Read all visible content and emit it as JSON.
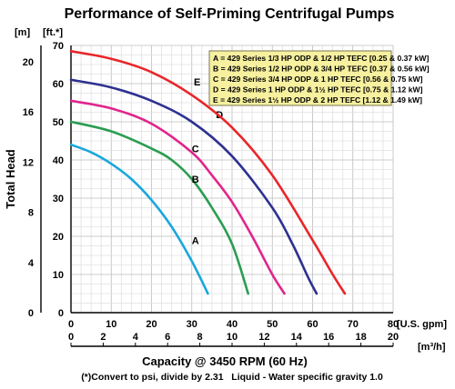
{
  "chart_data": {
    "type": "line",
    "title": "Performance of Self-Priming Centrifugal Pumps",
    "xlabel": "Capacity @ 3450 RPM (60 Hz)",
    "ylabel": "Total Head",
    "footnote": "(*)Convert to psi, divide by 2.31   Liquid - Water specific gravity 1.0",
    "x_axis": {
      "unit": "[U.S. gpm]",
      "range": [
        0,
        80
      ],
      "ticks": [
        "0",
        "10",
        "20",
        "30",
        "40",
        "50",
        "60",
        "70",
        "80"
      ]
    },
    "x2_axis": {
      "unit": "[m³/h]",
      "range": [
        0,
        20
      ],
      "ticks": [
        "0",
        "2",
        "4",
        "6",
        "8",
        "10",
        "12",
        "14",
        "16",
        "18",
        "20"
      ]
    },
    "y_axis": {
      "unit": "[ft.*]",
      "range": [
        0,
        70
      ],
      "ticks": [
        "0",
        "10",
        "20",
        "30",
        "40",
        "50",
        "60",
        "70"
      ]
    },
    "y2_axis": {
      "unit": "[m]",
      "range": [
        0,
        21.3
      ],
      "ticks": [
        "0",
        "4",
        "8",
        "12",
        "16",
        "20"
      ]
    },
    "grid": true,
    "legend": {
      "position": "top-right",
      "entries": [
        "A = 429 Series 1/3 HP ODP & 1/2 HP TEFC [0.25 & 0.37 kW]",
        "B = 429 Series 1/2 HP ODP & 3/4 HP TEFC [0.37 & 0.56 kW]",
        "C = 429 Series 3/4 HP ODP & 1 HP TEFC [0.56 & 0.75 kW]",
        "D = 429 Series 1 HP ODP & 1½ HP TEFC [0.75 & 1.12 kW]",
        "E = 429 Series 1½ HP ODP & 2 HP TEFC [1.12 & 1.49 kW]"
      ]
    },
    "series": [
      {
        "name": "A",
        "color": "#1aa7dc",
        "label_at": [
          30,
          18
        ],
        "points": [
          [
            0,
            44
          ],
          [
            5,
            42
          ],
          [
            10,
            39
          ],
          [
            15,
            35
          ],
          [
            20,
            29.5
          ],
          [
            25,
            22.5
          ],
          [
            30,
            13.5
          ],
          [
            34,
            5
          ]
        ]
      },
      {
        "name": "B",
        "color": "#2a9d52",
        "label_at": [
          30,
          34
        ],
        "points": [
          [
            0,
            50
          ],
          [
            10,
            47.5
          ],
          [
            20,
            43
          ],
          [
            25,
            40
          ],
          [
            30,
            35
          ],
          [
            35,
            27.5
          ],
          [
            40,
            18
          ],
          [
            44,
            5
          ]
        ]
      },
      {
        "name": "C",
        "color": "#e0258c",
        "label_at": [
          30,
          42
        ],
        "points": [
          [
            0,
            55.5
          ],
          [
            10,
            53.5
          ],
          [
            20,
            49.5
          ],
          [
            30,
            42
          ],
          [
            35,
            36
          ],
          [
            40,
            29
          ],
          [
            45,
            20
          ],
          [
            50,
            10
          ],
          [
            53,
            5
          ]
        ]
      },
      {
        "name": "D",
        "color": "#2e3190",
        "label_at": [
          36,
          51
        ],
        "points": [
          [
            0,
            61
          ],
          [
            10,
            59
          ],
          [
            20,
            55.5
          ],
          [
            30,
            50
          ],
          [
            40,
            41
          ],
          [
            50,
            27.5
          ],
          [
            55,
            18
          ],
          [
            59,
            9
          ],
          [
            61,
            5
          ]
        ]
      },
      {
        "name": "E",
        "color": "#e8262a",
        "label_at": [
          30.5,
          59.5
        ],
        "points": [
          [
            0,
            68.5
          ],
          [
            10,
            66.5
          ],
          [
            20,
            63
          ],
          [
            30,
            57
          ],
          [
            40,
            48.5
          ],
          [
            50,
            36
          ],
          [
            60,
            19
          ],
          [
            65,
            10
          ],
          [
            68,
            5
          ]
        ]
      }
    ]
  }
}
